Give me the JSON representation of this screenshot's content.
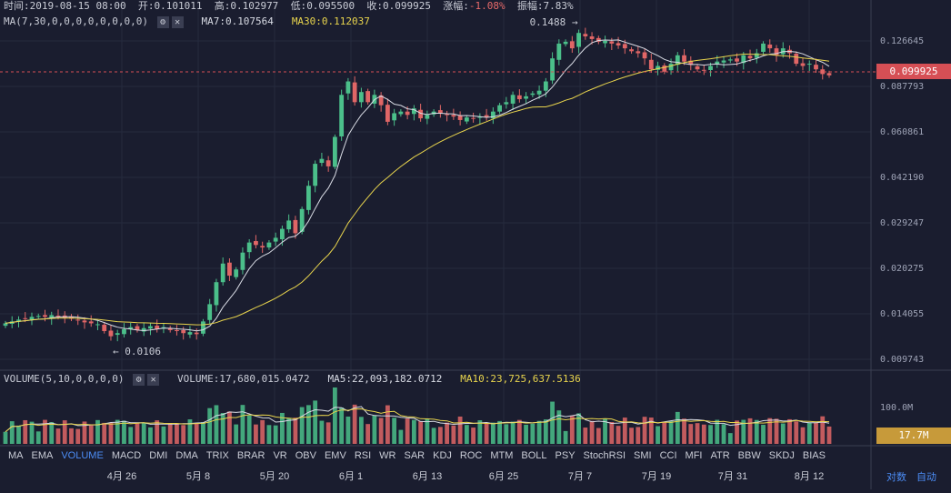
{
  "info": {
    "time_label": "时间:",
    "time_value": "2019-08-15 08:00",
    "open_label": "开:",
    "open_value": "0.101011",
    "high_label": "高:",
    "high_value": "0.102977",
    "low_label": "低:",
    "low_value": "0.095500",
    "close_label": "收:",
    "close_value": "0.099925",
    "change_label": "涨幅:",
    "change_value": "-1.08%",
    "amp_label": "振幅:",
    "amp_value": "7.83%"
  },
  "ma_legend": {
    "params": "MA(7,30,0,0,0,0,0,0,0,0)",
    "ma7": "MA7:0.107564",
    "ma30": "MA30:0.112037"
  },
  "vol_legend": {
    "params": "VOLUME(5,10,0,0,0,0)",
    "volume": "VOLUME:17,680,015.0472",
    "ma5": "MA5:22,093,182.0712",
    "ma10": "MA10:23,725,637.5136"
  },
  "annotations": {
    "high": "0.1488 →",
    "low": "← 0.0106"
  },
  "price_axis": [
    "0.126645",
    "0.087793",
    "0.060861",
    "0.042190",
    "0.029247",
    "0.020275",
    "0.014055",
    "0.009743"
  ],
  "current_price": "0.099925",
  "volume_axis": [
    "100.0M"
  ],
  "current_volume": "17.7M",
  "indicators": [
    "MA",
    "EMA",
    "VOLUME",
    "MACD",
    "DMI",
    "DMA",
    "TRIX",
    "BRAR",
    "VR",
    "OBV",
    "EMV",
    "RSI",
    "WR",
    "SAR",
    "KDJ",
    "ROC",
    "MTM",
    "BOLL",
    "PSY",
    "StochRSI",
    "SMI",
    "CCI",
    "MFI",
    "ATR",
    "BBW",
    "SKDJ",
    "BIAS"
  ],
  "active_indicator": "VOLUME",
  "dates": [
    "4月 26",
    "5月 8",
    "5月 20",
    "6月 1",
    "6月 13",
    "6月 25",
    "7月 7",
    "7月 19",
    "7月 31",
    "8月 12"
  ],
  "buttons": {
    "log": "对数",
    "auto": "自动"
  },
  "colors": {
    "up": "#4bbf8a",
    "down": "#e06666",
    "ma7": "#d8dbe4",
    "ma30": "#e8d44d",
    "bg": "#1a1d2f"
  },
  "chart_data": {
    "type": "candlestick",
    "interval": "daily",
    "closes": [
      0.0128,
      0.013,
      0.0132,
      0.0133,
      0.0135,
      0.0136,
      0.0135,
      0.0137,
      0.0136,
      0.0134,
      0.0133,
      0.0131,
      0.0129,
      0.0128,
      0.0127,
      0.012,
      0.0115,
      0.0118,
      0.0122,
      0.0124,
      0.0121,
      0.0123,
      0.0125,
      0.0122,
      0.0124,
      0.0121,
      0.012,
      0.0118,
      0.0119,
      0.0117,
      0.013,
      0.015,
      0.018,
      0.021,
      0.019,
      0.02,
      0.023,
      0.025,
      0.0245,
      0.024,
      0.025,
      0.026,
      0.028,
      0.03,
      0.027,
      0.033,
      0.04,
      0.048,
      0.05,
      0.047,
      0.06,
      0.085,
      0.095,
      0.08,
      0.087,
      0.08,
      0.085,
      0.078,
      0.068,
      0.073,
      0.074,
      0.072,
      0.076,
      0.07,
      0.072,
      0.074,
      0.073,
      0.072,
      0.071,
      0.069,
      0.0705,
      0.07,
      0.071,
      0.0705,
      0.074,
      0.078,
      0.08,
      0.085,
      0.082,
      0.084,
      0.086,
      0.088,
      0.095,
      0.115,
      0.13,
      0.132,
      0.125,
      0.142,
      0.138,
      0.135,
      0.132,
      0.133,
      0.13,
      0.128,
      0.125,
      0.122,
      0.12,
      0.115,
      0.105,
      0.108,
      0.103,
      0.11,
      0.118,
      0.112,
      0.109,
      0.105,
      0.104,
      0.108,
      0.112,
      0.113,
      0.114,
      0.112,
      0.118,
      0.115,
      0.12,
      0.13,
      0.125,
      0.118,
      0.125,
      0.12,
      0.11,
      0.108,
      0.11,
      0.105,
      0.101,
      0.0999
    ]
  }
}
